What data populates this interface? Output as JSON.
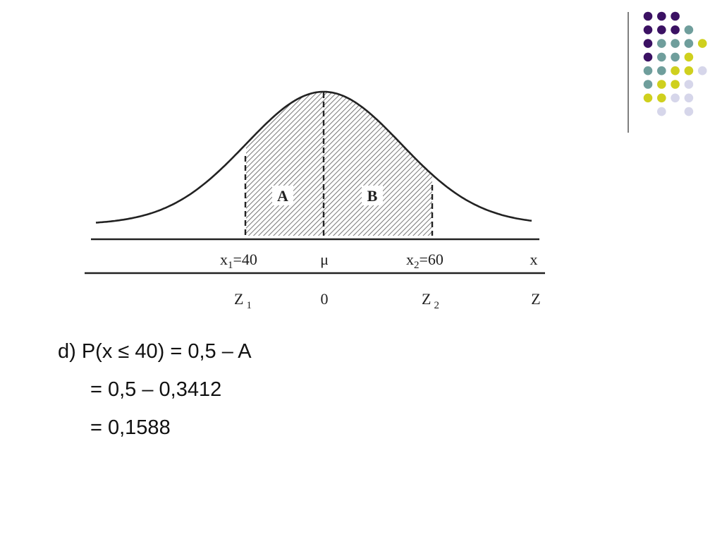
{
  "diagram": {
    "region_labels": {
      "a": "A",
      "b": "B"
    },
    "x_axis": {
      "x1_main": "x",
      "x1_sub": "1",
      "x1_value": "=40",
      "mu": "μ",
      "x2_main": "x",
      "x2_sub": "2",
      "x2_value": "=60",
      "axis_name": "x"
    },
    "z_axis": {
      "z1_main": "Z",
      "z1_sub": "1",
      "zero": "0",
      "z2_main": "Z",
      "z2_sub": "2",
      "axis_name": "Z"
    }
  },
  "solution": {
    "line1": "d) P(x ≤ 40) = 0,5 – A",
    "line2": "= 0,5 – 0,3412",
    "line3": "= 0,1588"
  },
  "decoration": {
    "colors": {
      "purple": "#3b1163",
      "teal": "#6f9e9c",
      "yellow": "#cfd01e",
      "lavender": "#d6d6ea",
      "divider": "#555555"
    },
    "dot_grid": [
      [
        "purple",
        "purple",
        "purple",
        "",
        ""
      ],
      [
        "purple",
        "purple",
        "purple",
        "teal",
        ""
      ],
      [
        "purple",
        "teal",
        "teal",
        "teal",
        "yellow"
      ],
      [
        "purple",
        "teal",
        "teal",
        "yellow",
        ""
      ],
      [
        "teal",
        "teal",
        "yellow",
        "yellow",
        "lavender"
      ],
      [
        "teal",
        "yellow",
        "yellow",
        "lavender",
        ""
      ],
      [
        "yellow",
        "yellow",
        "lavender",
        "lavender",
        ""
      ],
      [
        "",
        "lavender",
        "",
        "lavender",
        ""
      ]
    ]
  }
}
